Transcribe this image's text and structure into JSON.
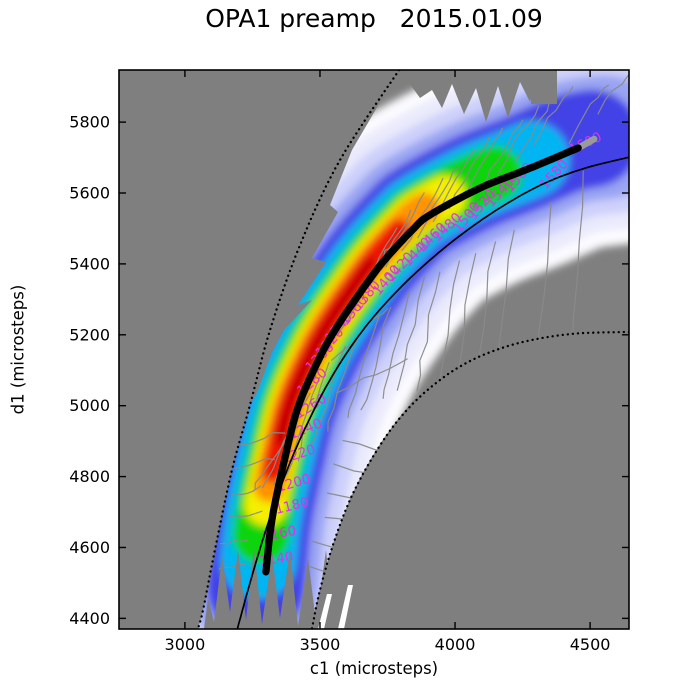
{
  "title": "OPA1 preamp   2015.01.09",
  "axes": {
    "xlabel": "c1 (microsteps)",
    "ylabel": "d1 (microsteps)"
  },
  "chart_data": {
    "type": "heatmap",
    "title": "OPA1 preamp   2015.01.09",
    "xlabel": "c1 (microsteps)",
    "ylabel": "d1 (microsteps)",
    "xlim": [
      2756,
      4644
    ],
    "ylim": [
      4370,
      5947
    ],
    "xticks": [
      3000,
      3500,
      4000,
      4500
    ],
    "yticks": [
      4400,
      4600,
      4800,
      5000,
      5200,
      5400,
      5600,
      5800
    ],
    "grid": false,
    "legend": "none",
    "masked_region_color": "#7f7f7f",
    "colormap": [
      "#fbfbff",
      "#eaeafc",
      "#cdd0fa",
      "#9aa4f2",
      "#4343e6",
      "#00b5f2",
      "#0ad50a",
      "#f5ee00",
      "#ff9300",
      "#ee1400",
      "#c40000"
    ],
    "contour_line_color": "#8a8a8a",
    "contour_label_color": "#e62ee6",
    "contour_levels": {
      "min": 1140,
      "max": 1600,
      "step": 20
    },
    "contour_labels": [
      {
        "value": 1140,
        "c1": 3341,
        "d1": 4556,
        "angle": -8
      },
      {
        "value": 1160,
        "c1": 3352,
        "d1": 4627,
        "angle": -11
      },
      {
        "value": 1180,
        "c1": 3400,
        "d1": 4706,
        "angle": -14
      },
      {
        "value": 1200,
        "c1": 3407,
        "d1": 4770,
        "angle": -16
      },
      {
        "value": 1220,
        "c1": 3426,
        "d1": 4852,
        "angle": -18
      },
      {
        "value": 1240,
        "c1": 3452,
        "d1": 4923,
        "angle": -22
      },
      {
        "value": 1260,
        "c1": 3474,
        "d1": 4988,
        "angle": -32
      },
      {
        "value": 1280,
        "c1": 3481,
        "d1": 5058,
        "angle": -40
      },
      {
        "value": 1300,
        "c1": 3511,
        "d1": 5129,
        "angle": -46
      },
      {
        "value": 1320,
        "c1": 3548,
        "d1": 5171,
        "angle": -48
      },
      {
        "value": 1340,
        "c1": 3581,
        "d1": 5213,
        "angle": -50
      },
      {
        "value": 1360,
        "c1": 3637,
        "d1": 5261,
        "angle": -50
      },
      {
        "value": 1380,
        "c1": 3685,
        "d1": 5303,
        "angle": -50
      },
      {
        "value": 1400,
        "c1": 3759,
        "d1": 5346,
        "angle": -50
      },
      {
        "value": 1420,
        "c1": 3807,
        "d1": 5383,
        "angle": -48
      },
      {
        "value": 1440,
        "c1": 3870,
        "d1": 5425,
        "angle": -46
      },
      {
        "value": 1460,
        "c1": 3926,
        "d1": 5467,
        "angle": -45
      },
      {
        "value": 1480,
        "c1": 3981,
        "d1": 5495,
        "angle": -44
      },
      {
        "value": 1500,
        "c1": 4056,
        "d1": 5524,
        "angle": -52
      },
      {
        "value": 1520,
        "c1": 4111,
        "d1": 5560,
        "angle": -50
      },
      {
        "value": 1540,
        "c1": 4178,
        "d1": 5594,
        "angle": -48
      },
      {
        "value": 1560,
        "c1": 4248,
        "d1": 5636,
        "angle": -48
      },
      {
        "value": 1580,
        "c1": 4378,
        "d1": 5645,
        "angle": -48
      },
      {
        "value": 1600,
        "c1": 4489,
        "d1": 5729,
        "angle": -25
      }
    ],
    "ridge_curve": {
      "style": "thick solid black",
      "points": [
        [
          3300,
          4531
        ],
        [
          3322,
          4677
        ],
        [
          3367,
          4841
        ],
        [
          3419,
          4996
        ],
        [
          3500,
          5137
        ],
        [
          3563,
          5222
        ],
        [
          3648,
          5318
        ],
        [
          3733,
          5405
        ],
        [
          3841,
          5495
        ],
        [
          3907,
          5538
        ],
        [
          4093,
          5614
        ],
        [
          4278,
          5670
        ],
        [
          4456,
          5727
        ]
      ]
    },
    "fit_curve": {
      "style": "thin solid black",
      "points": [
        [
          3193,
          4367
        ],
        [
          3248,
          4519
        ],
        [
          3307,
          4666
        ],
        [
          3378,
          4818
        ],
        [
          3459,
          4959
        ],
        [
          3552,
          5092
        ],
        [
          3659,
          5213
        ],
        [
          3781,
          5320
        ],
        [
          3915,
          5416
        ],
        [
          4056,
          5501
        ],
        [
          4196,
          5572
        ],
        [
          4333,
          5628
        ],
        [
          4481,
          5670
        ],
        [
          4644,
          5701
        ]
      ]
    },
    "limit_curves": [
      {
        "style": "dotted black",
        "points": [
          [
            3793,
            5947
          ],
          [
            3574,
            5693
          ],
          [
            3426,
            5453
          ],
          [
            3315,
            5213
          ],
          [
            3241,
            5002
          ],
          [
            3174,
            4818
          ],
          [
            3111,
            4593
          ],
          [
            3067,
            4423
          ],
          [
            3048,
            4370
          ]
        ]
      },
      {
        "style": "dotted black",
        "points": [
          [
            4644,
            5208
          ],
          [
            4426,
            5202
          ],
          [
            4222,
            5174
          ],
          [
            4048,
            5123
          ],
          [
            3907,
            5050
          ],
          [
            3789,
            4959
          ],
          [
            3693,
            4852
          ],
          [
            3611,
            4734
          ],
          [
            3548,
            4607
          ],
          [
            3500,
            4480
          ],
          [
            3470,
            4370
          ]
        ]
      }
    ]
  }
}
